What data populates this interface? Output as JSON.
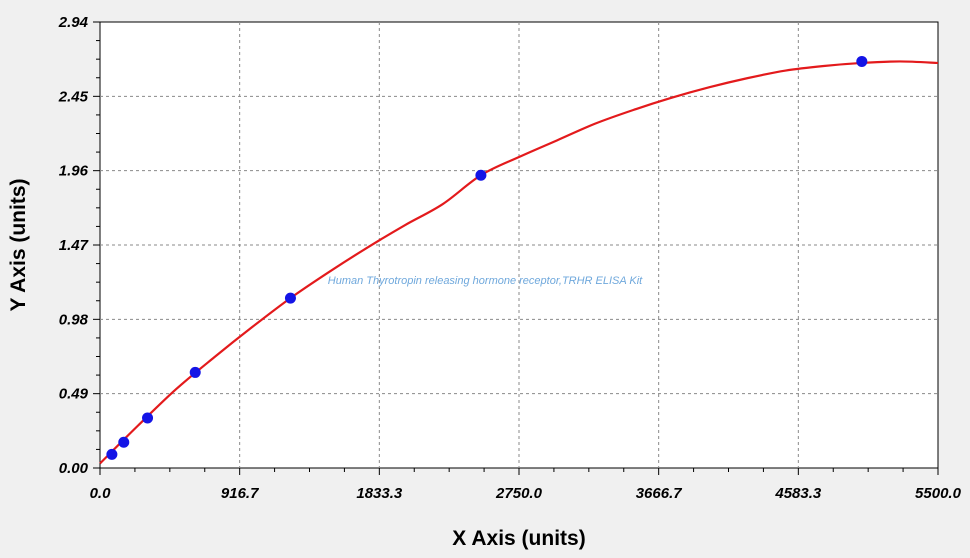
{
  "chart_data": {
    "type": "scatter",
    "xlabel": "X Axis (units)",
    "ylabel": "Y Axis (units)",
    "xlim": [
      0,
      5500
    ],
    "ylim": [
      0,
      2.94
    ],
    "x_ticks": [
      "0.0",
      "916.7",
      "1833.3",
      "2750.0",
      "3666.7",
      "4583.3",
      "5500.0"
    ],
    "y_ticks": [
      "0.00",
      "0.49",
      "0.98",
      "1.47",
      "1.96",
      "2.45",
      "2.94"
    ],
    "grid": true,
    "watermark": "Human Thyrotropin releasing hormone receptor,TRHR ELISA Kit",
    "series": [
      {
        "kind": "points",
        "x": [
          78,
          156,
          312,
          625,
          1250,
          2500,
          5000
        ],
        "y": [
          0.09,
          0.17,
          0.33,
          0.63,
          1.12,
          1.93,
          2.68
        ]
      },
      {
        "kind": "fit-curve",
        "x": [
          0,
          250,
          500,
          750,
          1000,
          1250,
          1500,
          1750,
          2000,
          2250,
          2500,
          2750,
          3000,
          3250,
          3500,
          3750,
          4000,
          4250,
          4500,
          4750,
          5000,
          5250,
          5500
        ],
        "y": [
          0.03,
          0.28,
          0.52,
          0.73,
          0.93,
          1.12,
          1.29,
          1.45,
          1.6,
          1.74,
          1.93,
          2.05,
          2.16,
          2.27,
          2.36,
          2.44,
          2.51,
          2.57,
          2.62,
          2.65,
          2.67,
          2.68,
          2.67
        ]
      }
    ],
    "colors": {
      "curve": "#e31a1c",
      "points": "#1414e6",
      "grid": "#8a8a8a",
      "background": "#f0f0f0",
      "plot_background": "#ffffff",
      "watermark": "#6fa8dc"
    }
  }
}
